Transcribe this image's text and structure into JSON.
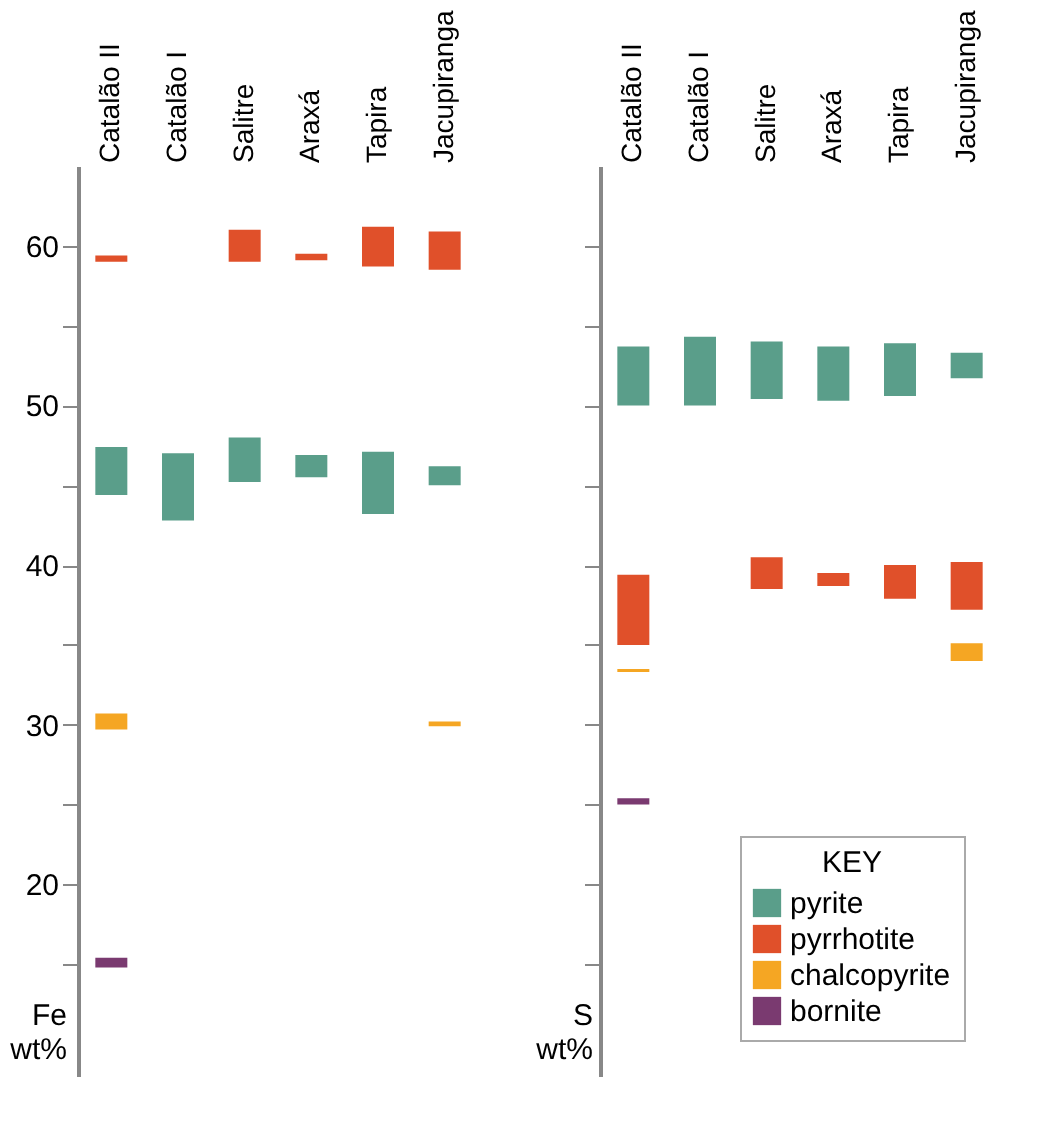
{
  "chart_data": [
    {
      "type": "bar",
      "ylabel": "Fe wt%",
      "categories": [
        "Catalão II",
        "Catalão I",
        "Salitre",
        "Araxá",
        "Tapira",
        "Jacupiranga"
      ],
      "series": [
        {
          "color": "#5a9e8a",
          "base": [
            44.4,
            42.8,
            45.2,
            45.5,
            43.2,
            45.0
          ],
          "values": [
            3.0,
            4.2,
            2.8,
            1.4,
            3.9,
            1.2
          ]
        },
        {
          "color": "#e0502a",
          "base": [
            59.0,
            null,
            59.0,
            59.1,
            58.7,
            58.5
          ],
          "values": [
            0.4,
            null,
            2.0,
            0.4,
            2.5,
            2.4
          ]
        },
        {
          "color": "#f5a623",
          "base": [
            29.7,
            null,
            null,
            null,
            null,
            29.9
          ],
          "values": [
            1.0,
            null,
            null,
            null,
            null,
            0.3
          ]
        },
        {
          "color": "#7a3a70",
          "base": [
            14.8,
            null,
            null,
            null,
            null,
            null
          ],
          "values": [
            0.6,
            null,
            null,
            null,
            null,
            null
          ]
        }
      ],
      "ylim": [
        8,
        65
      ],
      "yticks": [
        {
          "value": 15,
          "label": null
        },
        20,
        {
          "value": 25,
          "label": null
        },
        30,
        {
          "value": 35,
          "label": null
        },
        40,
        {
          "value": 45,
          "label": null
        },
        50,
        {
          "value": 55,
          "label": null
        },
        60
      ],
      "grid": false
    },
    {
      "type": "bar",
      "ylabel": "S wt%",
      "legend_title": "KEY",
      "categories": [
        "Catalão II",
        "Catalão I",
        "Salitre",
        "Araxá",
        "Tapira",
        "Jacupiranga"
      ],
      "series": [
        {
          "name": "pyrite",
          "color": "#5a9e8a",
          "base": [
            50.0,
            50.0,
            50.4,
            50.3,
            50.6,
            51.7
          ],
          "values": [
            3.7,
            4.3,
            3.6,
            3.4,
            3.3,
            1.6
          ]
        },
        {
          "name": "pyrrhotite",
          "color": "#e0502a",
          "base": [
            35.0,
            null,
            38.5,
            38.7,
            37.9,
            37.2
          ],
          "values": [
            4.4,
            null,
            2.0,
            0.8,
            2.1,
            3.0
          ]
        },
        {
          "name": "chalcopyrite",
          "color": "#f5a623",
          "base": [
            33.3,
            null,
            null,
            null,
            null,
            34.0
          ],
          "values": [
            0.2,
            null,
            null,
            null,
            null,
            1.1
          ]
        },
        {
          "name": "bornite",
          "color": "#7a3a70",
          "base": [
            25.0,
            null,
            null,
            null,
            null,
            null
          ],
          "values": [
            0.4,
            null,
            null,
            null,
            null,
            null
          ]
        }
      ],
      "ylim": [
        8,
        65
      ],
      "yticks": [
        {
          "value": 15,
          "label": null
        },
        {
          "value": 20,
          "label": null
        },
        {
          "value": 25,
          "label": null
        },
        {
          "value": 30,
          "label": null
        },
        {
          "value": 35,
          "label": null
        },
        {
          "value": 40,
          "label": null
        },
        {
          "value": 45,
          "label": null
        },
        {
          "value": 50,
          "label": null
        },
        {
          "value": 55,
          "label": null
        },
        {
          "value": 60,
          "label": null
        }
      ],
      "tick_labels": "x",
      "grid": false,
      "legend": "bottom right"
    }
  ]
}
